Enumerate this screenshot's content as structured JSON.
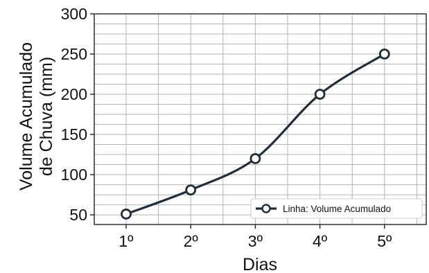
{
  "chart_data": {
    "type": "line",
    "categories": [
      "1º",
      "2º",
      "3º",
      "4º",
      "5º"
    ],
    "series": [
      {
        "name": "Linha: Volume Acumulado",
        "values": [
          51,
          81,
          120,
          200,
          250
        ]
      }
    ],
    "xlabel": "Dias",
    "ylabel_lines": [
      "Volume Acumulado",
      "de Chuva (mm)"
    ],
    "ylim": [
      38,
      300
    ],
    "yticks": [
      50,
      100,
      150,
      200,
      250,
      300
    ],
    "y_minor_step": 12.5,
    "grid": true,
    "legend": "bottom-right",
    "line_color": "#1f2d3d",
    "marker_fill": "#ffffff",
    "grid_color": "#b5b5b5"
  }
}
